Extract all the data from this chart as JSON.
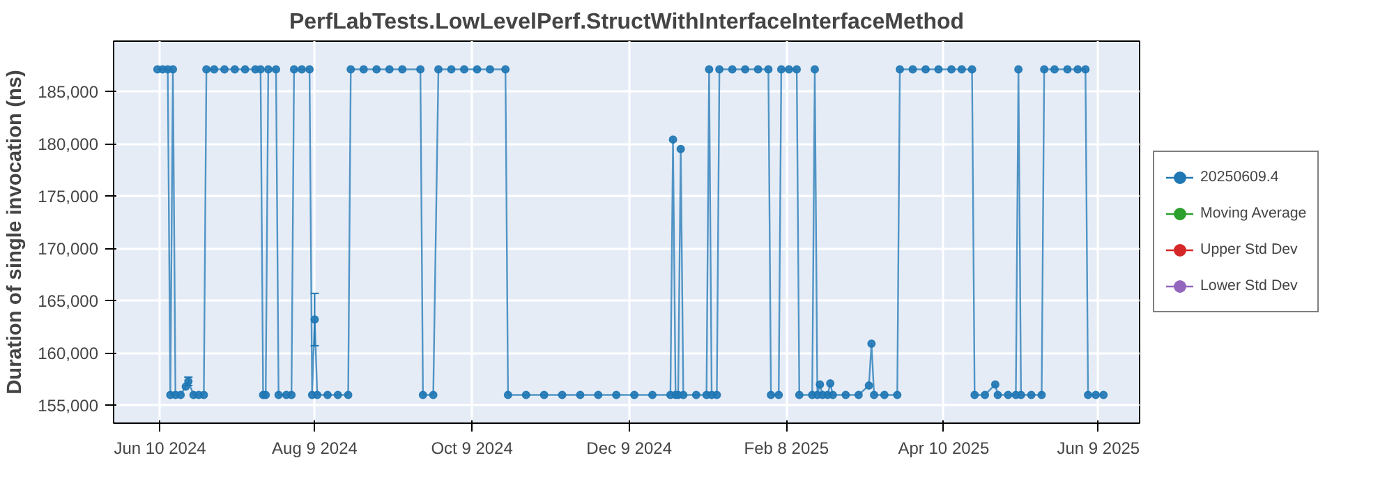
{
  "chart_data": {
    "type": "line",
    "title": "PerfLabTests.LowLevelPerf.StructWithInterfaceInterfaceMethod",
    "ylabel": "Duration of single invocation (ns)",
    "xlim": [
      "2024-05-23",
      "2025-06-25"
    ],
    "ylim": [
      153300,
      189800
    ],
    "xticks": [
      {
        "value": "2024-06-10",
        "label": "Jun 10 2024"
      },
      {
        "value": "2024-08-09",
        "label": "Aug 9 2024"
      },
      {
        "value": "2024-10-09",
        "label": "Oct 9 2024"
      },
      {
        "value": "2024-12-09",
        "label": "Dec 9 2024"
      },
      {
        "value": "2025-02-08",
        "label": "Feb 8 2025"
      },
      {
        "value": "2025-04-10",
        "label": "Apr 10 2025"
      },
      {
        "value": "2025-06-09",
        "label": "Jun 9 2025"
      }
    ],
    "yticks": [
      {
        "value": 155000,
        "label": "155,000"
      },
      {
        "value": 160000,
        "label": "160,000"
      },
      {
        "value": 165000,
        "label": "165,000"
      },
      {
        "value": 170000,
        "label": "170,000"
      },
      {
        "value": 175000,
        "label": "175,000"
      },
      {
        "value": 180000,
        "label": "180,000"
      },
      {
        "value": 185000,
        "label": "185,000"
      }
    ],
    "grid": true,
    "legend": "right",
    "marker": "circle",
    "line_style": "solid",
    "series": [
      {
        "name": "20250609.4",
        "color": "#1f77b4",
        "x": [
          "2024-06-09",
          "2024-06-11",
          "2024-06-13",
          "2024-06-14",
          "2024-06-15",
          "2024-06-16",
          "2024-06-18",
          "2024-06-20",
          "2024-06-21",
          "2024-06-23",
          "2024-06-25",
          "2024-06-27",
          "2024-06-28",
          "2024-07-01",
          "2024-07-05",
          "2024-07-09",
          "2024-07-13",
          "2024-07-17",
          "2024-07-19",
          "2024-07-20",
          "2024-07-21",
          "2024-07-22",
          "2024-07-25",
          "2024-07-26",
          "2024-07-29",
          "2024-07-31",
          "2024-08-01",
          "2024-08-04",
          "2024-08-07",
          "2024-08-08",
          "2024-08-09",
          "2024-08-10",
          "2024-08-14",
          "2024-08-18",
          "2024-08-22",
          "2024-08-23",
          "2024-08-28",
          "2024-09-02",
          "2024-09-07",
          "2024-09-12",
          "2024-09-19",
          "2024-09-20",
          "2024-09-24",
          "2024-09-26",
          "2024-10-01",
          "2024-10-06",
          "2024-10-11",
          "2024-10-16",
          "2024-10-22",
          "2024-10-23",
          "2024-10-30",
          "2024-11-06",
          "2024-11-13",
          "2024-11-20",
          "2024-11-27",
          "2024-12-04",
          "2024-12-11",
          "2024-12-18",
          "2024-12-25",
          "2024-12-26",
          "2024-12-27",
          "2024-12-28",
          "2024-12-29",
          "2024-12-30",
          "2025-01-04",
          "2025-01-08",
          "2025-01-09",
          "2025-01-10",
          "2025-01-12",
          "2025-01-13",
          "2025-01-18",
          "2025-01-23",
          "2025-01-28",
          "2025-02-01",
          "2025-02-02",
          "2025-02-05",
          "2025-02-06",
          "2025-02-09",
          "2025-02-12",
          "2025-02-13",
          "2025-02-18",
          "2025-02-19",
          "2025-02-20",
          "2025-02-21",
          "2025-02-22",
          "2025-02-24",
          "2025-02-25",
          "2025-02-26",
          "2025-03-03",
          "2025-03-08",
          "2025-03-12",
          "2025-03-13",
          "2025-03-14",
          "2025-03-18",
          "2025-03-23",
          "2025-03-24",
          "2025-03-29",
          "2025-04-03",
          "2025-04-08",
          "2025-04-13",
          "2025-04-17",
          "2025-04-21",
          "2025-04-22",
          "2025-04-26",
          "2025-04-30",
          "2025-05-01",
          "2025-05-05",
          "2025-05-08",
          "2025-05-09",
          "2025-05-10",
          "2025-05-14",
          "2025-05-18",
          "2025-05-19",
          "2025-05-23",
          "2025-05-28",
          "2025-06-01",
          "2025-06-04",
          "2025-06-05",
          "2025-06-08",
          "2025-06-11"
        ],
        "values": [
          187100,
          187100,
          187100,
          156000,
          187100,
          156000,
          156000,
          156800,
          157300,
          156000,
          156000,
          156000,
          187100,
          187100,
          187100,
          187100,
          187100,
          187100,
          187100,
          156000,
          156000,
          187100,
          187100,
          156000,
          156000,
          156000,
          187100,
          187100,
          187100,
          156000,
          163200,
          156000,
          156000,
          156000,
          156000,
          187100,
          187100,
          187100,
          187100,
          187100,
          187100,
          156000,
          156000,
          187100,
          187100,
          187100,
          187100,
          187100,
          187100,
          156000,
          156000,
          156000,
          156000,
          156000,
          156000,
          156000,
          156000,
          156000,
          156000,
          180400,
          156000,
          156000,
          179500,
          156000,
          156000,
          156000,
          187100,
          156000,
          156000,
          187100,
          187100,
          187100,
          187100,
          187100,
          156000,
          156000,
          187100,
          187100,
          187100,
          156000,
          156000,
          187100,
          156000,
          157000,
          156000,
          156000,
          157100,
          156000,
          156000,
          156000,
          156900,
          160900,
          156000,
          156000,
          156000,
          187100,
          187100,
          187100,
          187100,
          187100,
          187100,
          187100,
          156000,
          156000,
          157000,
          156000,
          156000,
          156000,
          187100,
          156000,
          156000,
          156000,
          187100,
          187100,
          187100,
          187100,
          187100,
          156000,
          156000,
          156000
        ],
        "errors": [
          null,
          null,
          null,
          null,
          null,
          null,
          null,
          null,
          [
            156900,
            157700
          ],
          null,
          null,
          null,
          null,
          null,
          null,
          null,
          null,
          null,
          null,
          null,
          null,
          null,
          null,
          null,
          null,
          null,
          null,
          null,
          null,
          null,
          [
            160700,
            165700
          ],
          null,
          null,
          null,
          null,
          null,
          null,
          null,
          null,
          null,
          null,
          null,
          null,
          null,
          null,
          null,
          null,
          null,
          null,
          null,
          null,
          null,
          null,
          null,
          null,
          null,
          null,
          null,
          null,
          null,
          null,
          null,
          null,
          null,
          null,
          null,
          null,
          null,
          null,
          null,
          null,
          null,
          null,
          null,
          null,
          null,
          null,
          null,
          null,
          null,
          null,
          null,
          null,
          null,
          null,
          null,
          null,
          null,
          null,
          null,
          null,
          null,
          null,
          null,
          null,
          null,
          null,
          null,
          null,
          null,
          null,
          null,
          null,
          null,
          null,
          null,
          null,
          null,
          null,
          null,
          null,
          null,
          null,
          null,
          null,
          null,
          null,
          null,
          null,
          null
        ]
      },
      {
        "name": "Moving Average",
        "color": "#2ca02c"
      },
      {
        "name": "Upper Std Dev",
        "color": "#d62728"
      },
      {
        "name": "Lower Std Dev",
        "color": "#9467bd"
      }
    ]
  }
}
